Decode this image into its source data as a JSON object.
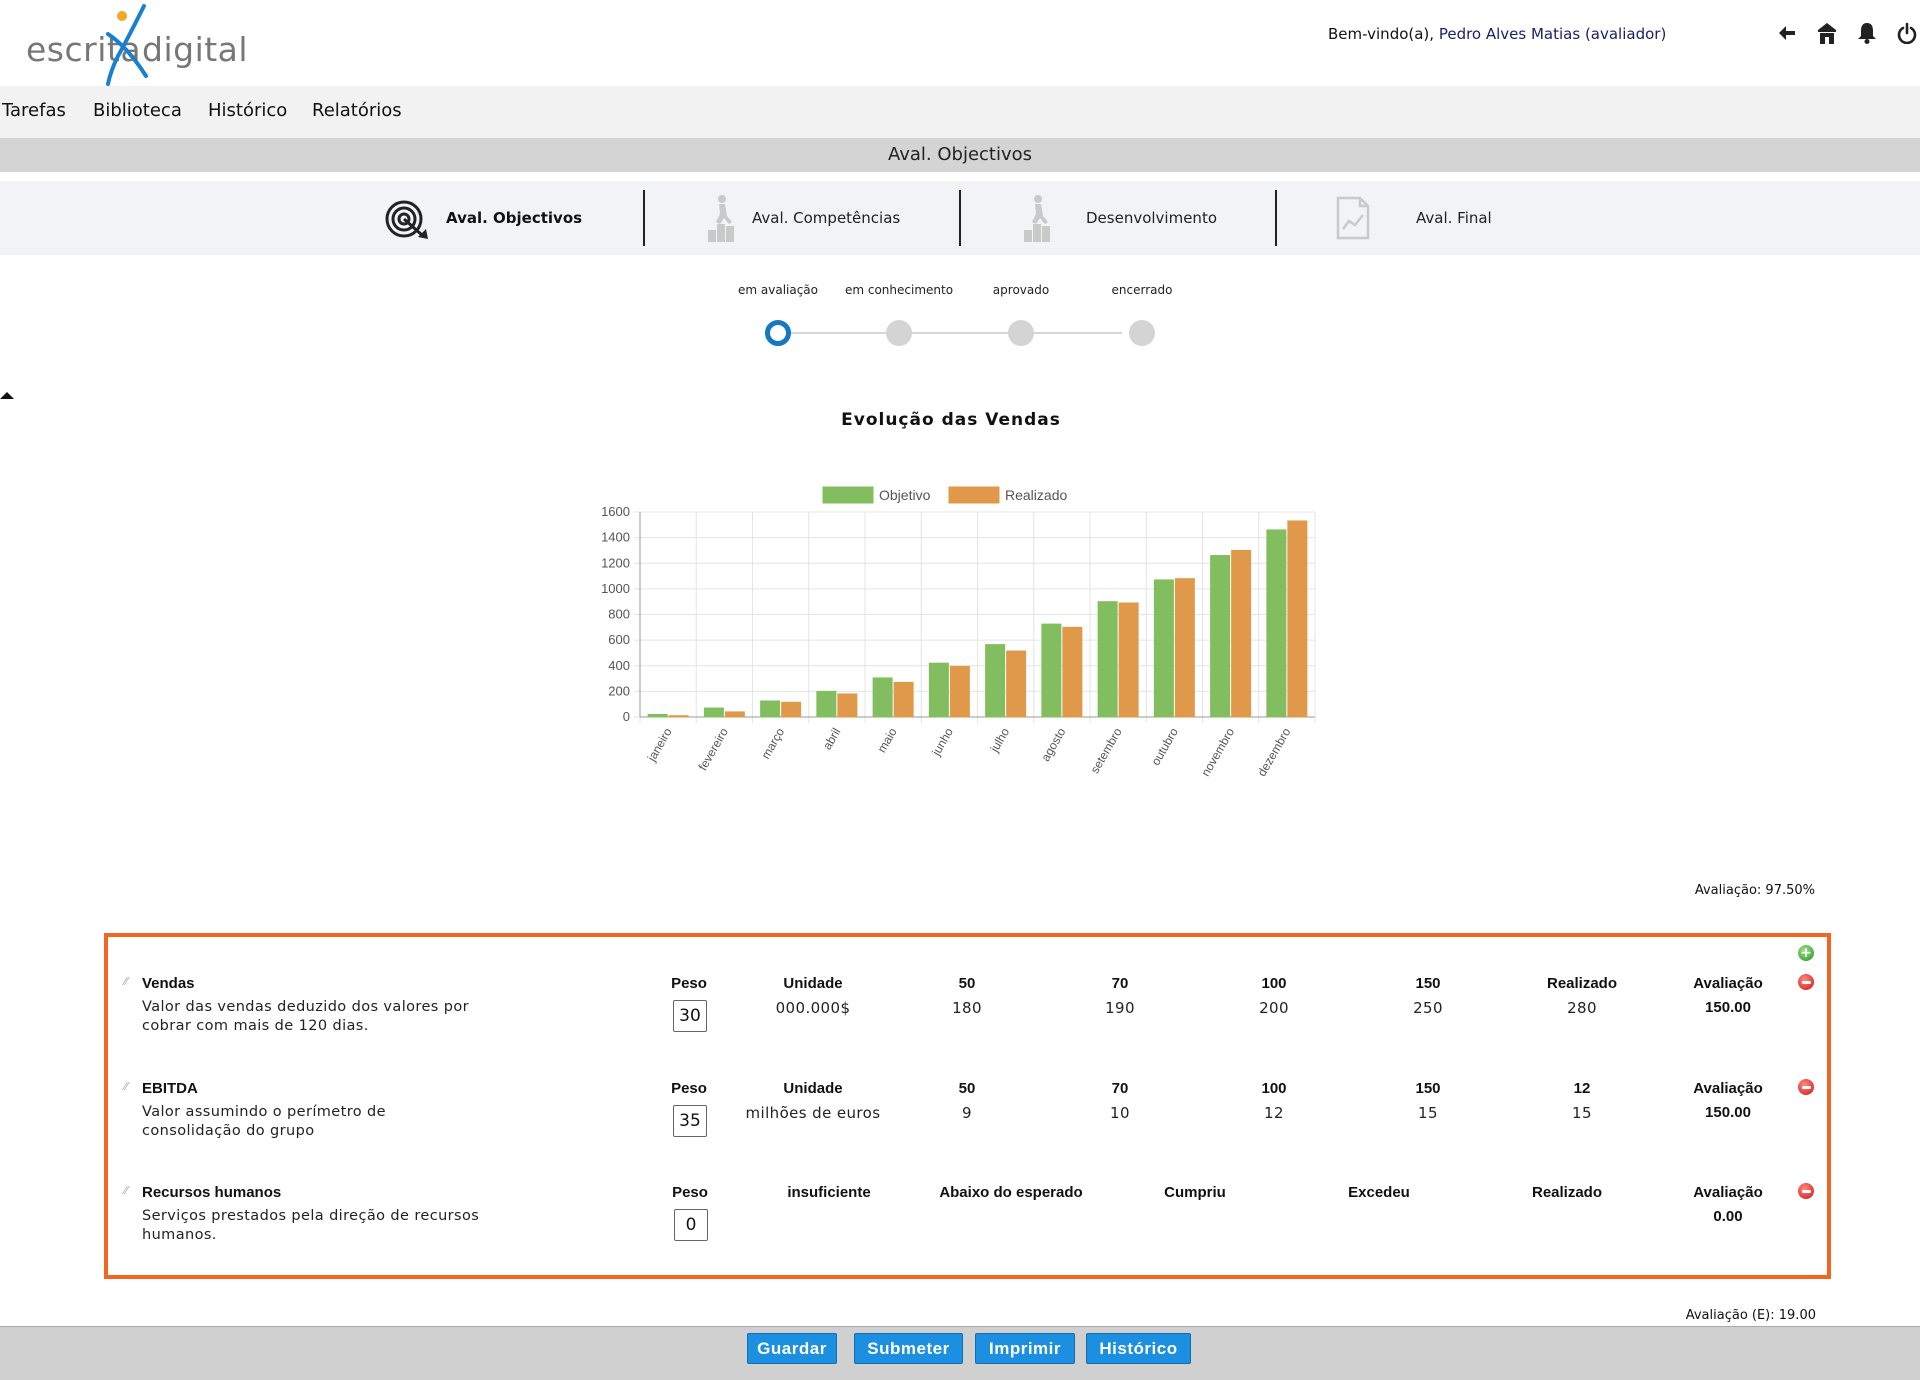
{
  "header": {
    "logo_left": "escrita",
    "logo_right": "digital",
    "welcome_prefix": "Bem-vindo(a), ",
    "welcome_user": "Pedro Alves Matias (avaliador)",
    "icons": [
      "back-arrow-icon",
      "home-icon",
      "bell-icon",
      "power-icon"
    ]
  },
  "menu": {
    "items": [
      "Tarefas",
      "Biblioteca",
      "Histórico",
      "Relatórios"
    ]
  },
  "page_title": "Aval. Objectivos",
  "tabs": [
    {
      "label": "Aval. Objectivos",
      "icon": "target-icon",
      "active": true
    },
    {
      "label": "Aval. Competências",
      "icon": "climbing-steps-icon",
      "active": false
    },
    {
      "label": "Desenvolvimento",
      "icon": "climbing-steps-icon",
      "active": false
    },
    {
      "label": "Aval. Final",
      "icon": "report-document-icon",
      "active": false
    }
  ],
  "workflow": {
    "steps": [
      "em avaliação",
      "em conhecimento",
      "aprovado",
      "encerrado"
    ],
    "current": 0
  },
  "chart_data": {
    "type": "bar",
    "title": "Evolução das Vendas",
    "categories": [
      "janeiro",
      "fevereiro",
      "março",
      "abril",
      "maio",
      "junho",
      "julho",
      "agosto",
      "setembro",
      "outubro",
      "novembro",
      "dezembro"
    ],
    "series": [
      {
        "name": "Objetivo",
        "color": "#82bd5f",
        "values": [
          20,
          70,
          125,
          200,
          305,
          420,
          565,
          725,
          900,
          1070,
          1260,
          1460
        ]
      },
      {
        "name": "Realizado",
        "color": "#e0994b",
        "values": [
          10,
          40,
          115,
          180,
          270,
          395,
          515,
          700,
          890,
          1080,
          1300,
          1530
        ]
      }
    ],
    "ylim": [
      0,
      1600
    ],
    "yticks": [
      0,
      200,
      400,
      600,
      800,
      1000,
      1200,
      1400,
      1600
    ],
    "grid": true,
    "legend": "top",
    "xlabel": "",
    "ylabel": ""
  },
  "evaluation_total": "Avaliação: 97.50%",
  "objectives": [
    {
      "name": "Vendas",
      "description": "Valor das vendas deduzido dos valores por cobrar com mais de 120 dias.",
      "peso_label": "Peso",
      "peso": "30",
      "columns": [
        {
          "head": "Unidade",
          "value": "000.000$"
        },
        {
          "head": "50",
          "value": "180"
        },
        {
          "head": "70",
          "value": "190"
        },
        {
          "head": "100",
          "value": "200"
        },
        {
          "head": "150",
          "value": "250"
        },
        {
          "head": "Realizado",
          "value": "280"
        }
      ],
      "avaliacao_label": "Avaliação",
      "avaliacao": "150.00"
    },
    {
      "name": "EBITDA",
      "description": "Valor assumindo o perímetro de consolidação do grupo",
      "peso_label": "Peso",
      "peso": "35",
      "columns": [
        {
          "head": "Unidade",
          "value": "milhões de euros"
        },
        {
          "head": "50",
          "value": "9"
        },
        {
          "head": "70",
          "value": "10"
        },
        {
          "head": "100",
          "value": "12"
        },
        {
          "head": "150",
          "value": "15"
        },
        {
          "head": "12",
          "value": "15"
        }
      ],
      "avaliacao_label": "Avaliação",
      "avaliacao": "150.00"
    },
    {
      "name": "Recursos humanos",
      "description": "Serviços prestados pela direção de recursos humanos.",
      "peso_label": "Peso",
      "peso": "0",
      "columns": [
        {
          "head": "insuficiente",
          "value": ""
        },
        {
          "head": "Abaixo do esperado",
          "value": ""
        },
        {
          "head": "Cumpriu",
          "value": ""
        },
        {
          "head": "Excedeu",
          "value": ""
        },
        {
          "head": "Realizado",
          "value": ""
        }
      ],
      "avaliacao_label": "Avaliação",
      "avaliacao": "0.00"
    }
  ],
  "evaluation_e": "Avaliação (E): 19.00",
  "footer": {
    "buttons": [
      "Guardar",
      "Submeter",
      "Imprimir",
      "Histórico"
    ]
  },
  "colors": {
    "accent": "#1c8fe0",
    "panel_border": "#f26522",
    "step_active": "#1778c2"
  }
}
